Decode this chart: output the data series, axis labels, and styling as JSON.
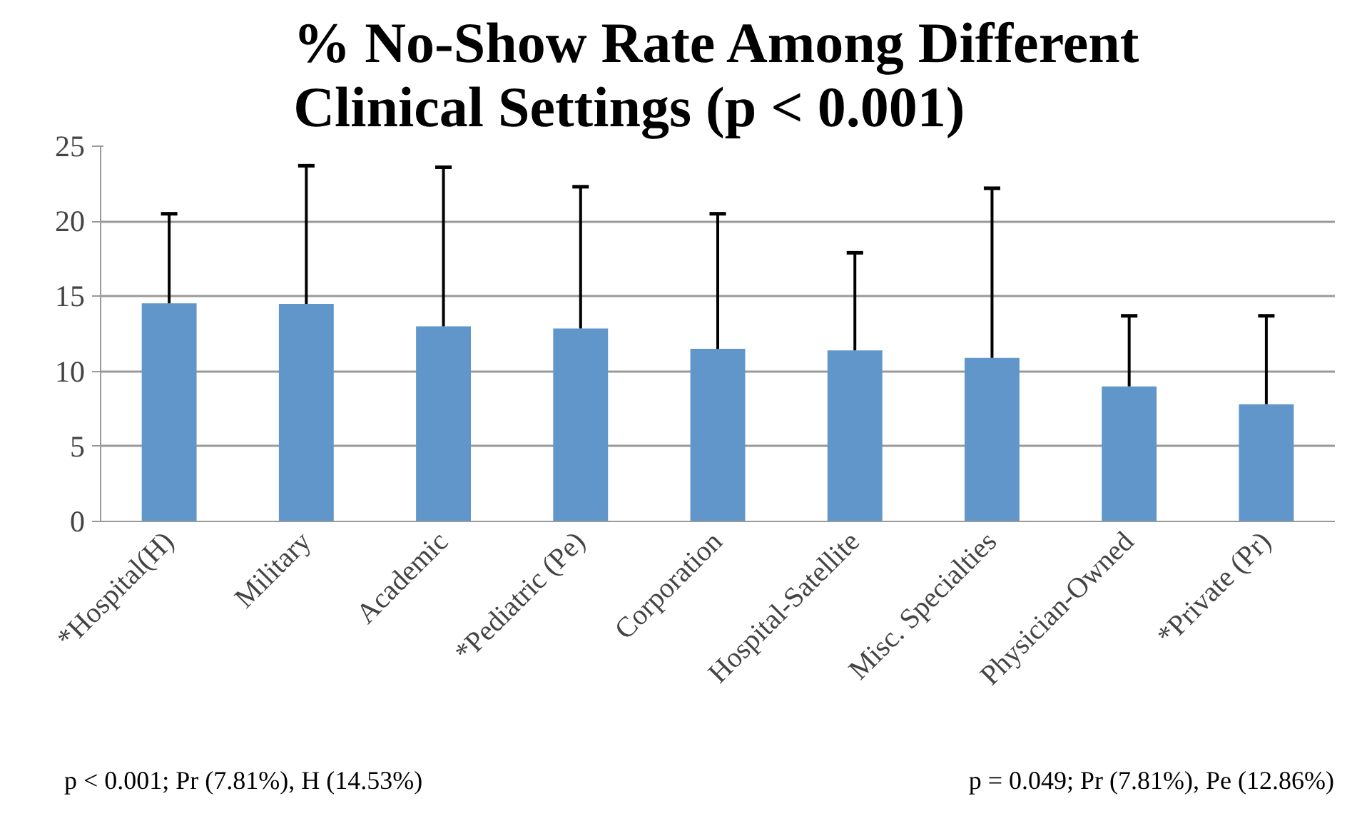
{
  "chart_data": {
    "type": "bar",
    "title": "% No-Show Rate Among Different\nClinical Settings (p < 0.001)",
    "categories": [
      "*Hospital(H)",
      "Military",
      "Academic",
      "*Pediatric (Pe)",
      "Corporation",
      "Hospital-Satellite",
      "Misc. Specialties",
      "Physician-Owned",
      "*Private (Pr)"
    ],
    "values": [
      14.53,
      14.5,
      13.0,
      12.86,
      11.5,
      11.4,
      10.9,
      9.0,
      7.81
    ],
    "errors": [
      [
        14.53,
        20.5
      ],
      [
        14.5,
        23.7
      ],
      [
        13.0,
        23.6
      ],
      [
        12.86,
        22.3
      ],
      [
        11.5,
        20.5
      ],
      [
        11.4,
        17.9
      ],
      [
        10.9,
        22.2
      ],
      [
        9.0,
        13.7
      ],
      [
        7.81,
        13.7
      ]
    ],
    "color": "#6096c9",
    "ylim": [
      0,
      25
    ],
    "yticks": [
      0,
      5,
      10,
      15,
      20,
      25
    ],
    "grid": "y",
    "annotations": [
      "p < 0.001; Pr (7.81%), H (14.53%)",
      "p = 0.049; Pr (7.81%), Pe (12.86%)"
    ]
  }
}
